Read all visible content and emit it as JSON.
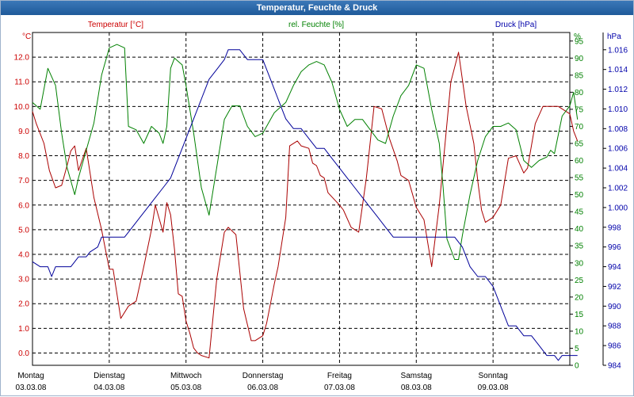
{
  "window": {
    "title": "Temperatur, Feuchte & Druck"
  },
  "chart_data": {
    "type": "line",
    "title": "Temperatur, Feuchte & Druck",
    "grid": true,
    "x_axis": {
      "range": [
        0,
        7
      ],
      "days": [
        {
          "name": "Montag",
          "date": "03.03.08"
        },
        {
          "name": "Dienstag",
          "date": "04.03.08"
        },
        {
          "name": "Mittwoch",
          "date": "05.03.08"
        },
        {
          "name": "Donnerstag",
          "date": "06.03.08"
        },
        {
          "name": "Freitag",
          "date": "07.03.08"
        },
        {
          "name": "Samstag",
          "date": "08.03.08"
        },
        {
          "name": "Sonntag",
          "date": "09.03.08"
        }
      ]
    },
    "axes": {
      "temperature": {
        "unit": "°C",
        "min": -0.5,
        "max": 13.0,
        "ticks": [
          "0.0",
          "1.0",
          "2.0",
          "3.0",
          "4.0",
          "5.0",
          "6.0",
          "7.0",
          "8.0",
          "9.0",
          "10.0",
          "11.0",
          "12.0"
        ],
        "color": "#cc0000"
      },
      "humidity": {
        "unit": "%",
        "min": 0,
        "max": 97.5,
        "ticks": [
          "0",
          "5",
          "10",
          "15",
          "20",
          "25",
          "30",
          "35",
          "40",
          "45",
          "50",
          "55",
          "60",
          "65",
          "70",
          "75",
          "80",
          "85",
          "90",
          "95"
        ],
        "color": "#008000"
      },
      "pressure": {
        "unit": "hPa",
        "min": 984,
        "max": 1017.75,
        "ticks": [
          "984",
          "986",
          "988",
          "990",
          "992",
          "994",
          "996",
          "998",
          "1.000",
          "1.002",
          "1.004",
          "1.006",
          "1.008",
          "1.010",
          "1.012",
          "1.014",
          "1.016"
        ],
        "color": "#0000aa"
      }
    },
    "series": [
      {
        "name": "Temperatur [°C]",
        "axis": "temperature",
        "color": "#aa0000",
        "x": [
          0,
          0.05,
          0.15,
          0.22,
          0.3,
          0.38,
          0.45,
          0.5,
          0.55,
          0.6,
          0.7,
          0.8,
          0.9,
          1.0,
          1.05,
          1.15,
          1.25,
          1.35,
          1.45,
          1.55,
          1.6,
          1.7,
          1.75,
          1.8,
          1.85,
          1.9,
          1.95,
          2.0,
          2.05,
          2.1,
          2.15,
          2.2,
          2.3,
          2.4,
          2.5,
          2.55,
          2.65,
          2.75,
          2.85,
          2.9,
          3.0,
          3.05,
          3.1,
          3.15,
          3.2,
          3.3,
          3.35,
          3.45,
          3.5,
          3.6,
          3.65,
          3.7,
          3.75,
          3.8,
          3.85,
          4.0,
          4.05,
          4.15,
          4.25,
          4.35,
          4.45,
          4.55,
          4.65,
          4.75,
          4.8,
          4.9,
          5.0,
          5.1,
          5.2,
          5.3,
          5.45,
          5.55,
          5.65,
          5.75,
          5.8,
          5.85,
          5.9,
          6.0,
          6.1,
          6.2,
          6.3,
          6.4,
          6.45,
          6.55,
          6.65,
          6.75,
          6.85,
          6.95,
          7.0,
          7.05,
          7.1
        ],
        "values": [
          9.8,
          9.3,
          8.5,
          7.4,
          6.7,
          6.8,
          7.6,
          8.2,
          8.4,
          7.4,
          8.3,
          6.3,
          5.0,
          3.4,
          3.4,
          1.4,
          1.9,
          2.1,
          3.5,
          5.0,
          6.0,
          4.9,
          6.1,
          5.6,
          4.2,
          2.4,
          2.3,
          1.3,
          0.8,
          0.2,
          0.0,
          -0.1,
          -0.2,
          3.0,
          4.9,
          5.1,
          4.8,
          1.8,
          0.5,
          0.5,
          0.7,
          1.2,
          2.0,
          2.8,
          3.5,
          5.5,
          8.4,
          8.6,
          8.4,
          8.3,
          7.7,
          7.6,
          7.2,
          7.1,
          6.5,
          6.0,
          5.8,
          5.1,
          4.9,
          7.1,
          10.0,
          9.9,
          8.7,
          7.8,
          7.2,
          7.0,
          5.9,
          5.4,
          3.5,
          6.0,
          11.0,
          12.2,
          10.0,
          8.5,
          7.0,
          5.8,
          5.3,
          5.5,
          6.0,
          7.9,
          8.0,
          7.3,
          7.5,
          9.3,
          10.0,
          10.0,
          10.0,
          9.8,
          9.7,
          9.0,
          8.6
        ]
      },
      {
        "name": "rel. Feuchte [%]",
        "axis": "humidity",
        "color": "#008000",
        "x": [
          0,
          0.1,
          0.2,
          0.3,
          0.38,
          0.45,
          0.55,
          0.6,
          0.7,
          0.8,
          0.9,
          1.0,
          1.1,
          1.2,
          1.25,
          1.35,
          1.45,
          1.55,
          1.65,
          1.7,
          1.75,
          1.8,
          1.85,
          1.9,
          1.95,
          2.0,
          2.1,
          2.2,
          2.3,
          2.4,
          2.5,
          2.6,
          2.7,
          2.8,
          2.9,
          3.0,
          3.1,
          3.15,
          3.2,
          3.3,
          3.4,
          3.5,
          3.6,
          3.7,
          3.8,
          3.9,
          4.0,
          4.1,
          4.2,
          4.3,
          4.4,
          4.5,
          4.6,
          4.7,
          4.8,
          4.9,
          5.0,
          5.1,
          5.2,
          5.3,
          5.35,
          5.4,
          5.5,
          5.55,
          5.6,
          5.7,
          5.75,
          5.8,
          5.9,
          6.0,
          6.05,
          6.1,
          6.2,
          6.3,
          6.4,
          6.5,
          6.6,
          6.7,
          6.75,
          6.8,
          6.9,
          7.0,
          7.05,
          7.1
        ],
        "values": [
          77,
          75,
          87,
          82,
          68,
          58,
          50,
          55,
          63,
          71,
          85,
          93,
          94,
          93,
          70,
          69,
          65,
          70,
          68,
          65,
          70,
          87,
          90,
          89,
          88,
          82,
          68,
          52,
          44,
          58,
          72,
          76,
          76,
          70,
          67,
          68,
          72,
          74,
          75,
          77,
          82,
          86,
          88,
          89,
          88,
          83,
          75,
          70,
          72,
          72,
          69,
          66,
          65,
          73,
          79,
          82,
          88,
          87,
          75,
          65,
          52,
          37,
          31,
          31,
          38,
          50,
          55,
          60,
          67,
          70,
          70,
          70,
          71,
          69,
          60,
          58,
          60,
          61,
          63,
          62,
          73,
          76,
          80,
          72
        ]
      },
      {
        "name": "Druck [hPa]",
        "axis": "pressure",
        "color": "#000099",
        "x": [
          0,
          0.1,
          0.2,
          0.25,
          0.3,
          0.4,
          0.5,
          0.55,
          0.6,
          0.7,
          0.75,
          0.85,
          0.9,
          1.0,
          1.1,
          1.2,
          1.3,
          1.4,
          1.5,
          1.6,
          1.7,
          1.8,
          1.9,
          2.0,
          2.1,
          2.2,
          2.3,
          2.4,
          2.5,
          2.55,
          2.6,
          2.7,
          2.8,
          2.9,
          3.0,
          3.1,
          3.2,
          3.3,
          3.4,
          3.5,
          3.6,
          3.7,
          3.8,
          3.9,
          4.0,
          4.1,
          4.2,
          4.3,
          4.4,
          4.5,
          4.6,
          4.7,
          4.75,
          4.8,
          4.9,
          5.0,
          5.1,
          5.2,
          5.3,
          5.4,
          5.5,
          5.6,
          5.7,
          5.8,
          5.9,
          6.0,
          6.1,
          6.2,
          6.3,
          6.4,
          6.5,
          6.6,
          6.7,
          6.8,
          6.85,
          6.9,
          7.0,
          7.1
        ],
        "values": [
          994.5,
          994,
          994,
          993,
          994,
          994,
          994,
          994.5,
          995,
          995,
          995.5,
          996,
          997,
          997,
          997,
          997,
          998,
          999,
          1000,
          1001,
          1002,
          1003,
          1005,
          1007,
          1009,
          1011,
          1013,
          1014,
          1015,
          1016,
          1016,
          1016,
          1015,
          1015,
          1015,
          1013,
          1011,
          1009,
          1008,
          1008,
          1007,
          1006,
          1006,
          1005,
          1004,
          1003,
          1002,
          1001,
          1000,
          999,
          998,
          997,
          997,
          997,
          997,
          997,
          997,
          997,
          997,
          997,
          997,
          996,
          994,
          993,
          993,
          992,
          990,
          988,
          988,
          987,
          987,
          986,
          985,
          985,
          984.5,
          985,
          985,
          985
        ]
      }
    ],
    "legend": {
      "placement": "top",
      "entries": [
        "Temperatur [°C]",
        "rel. Feuchte [%]",
        "Druck [hPa]"
      ]
    }
  }
}
